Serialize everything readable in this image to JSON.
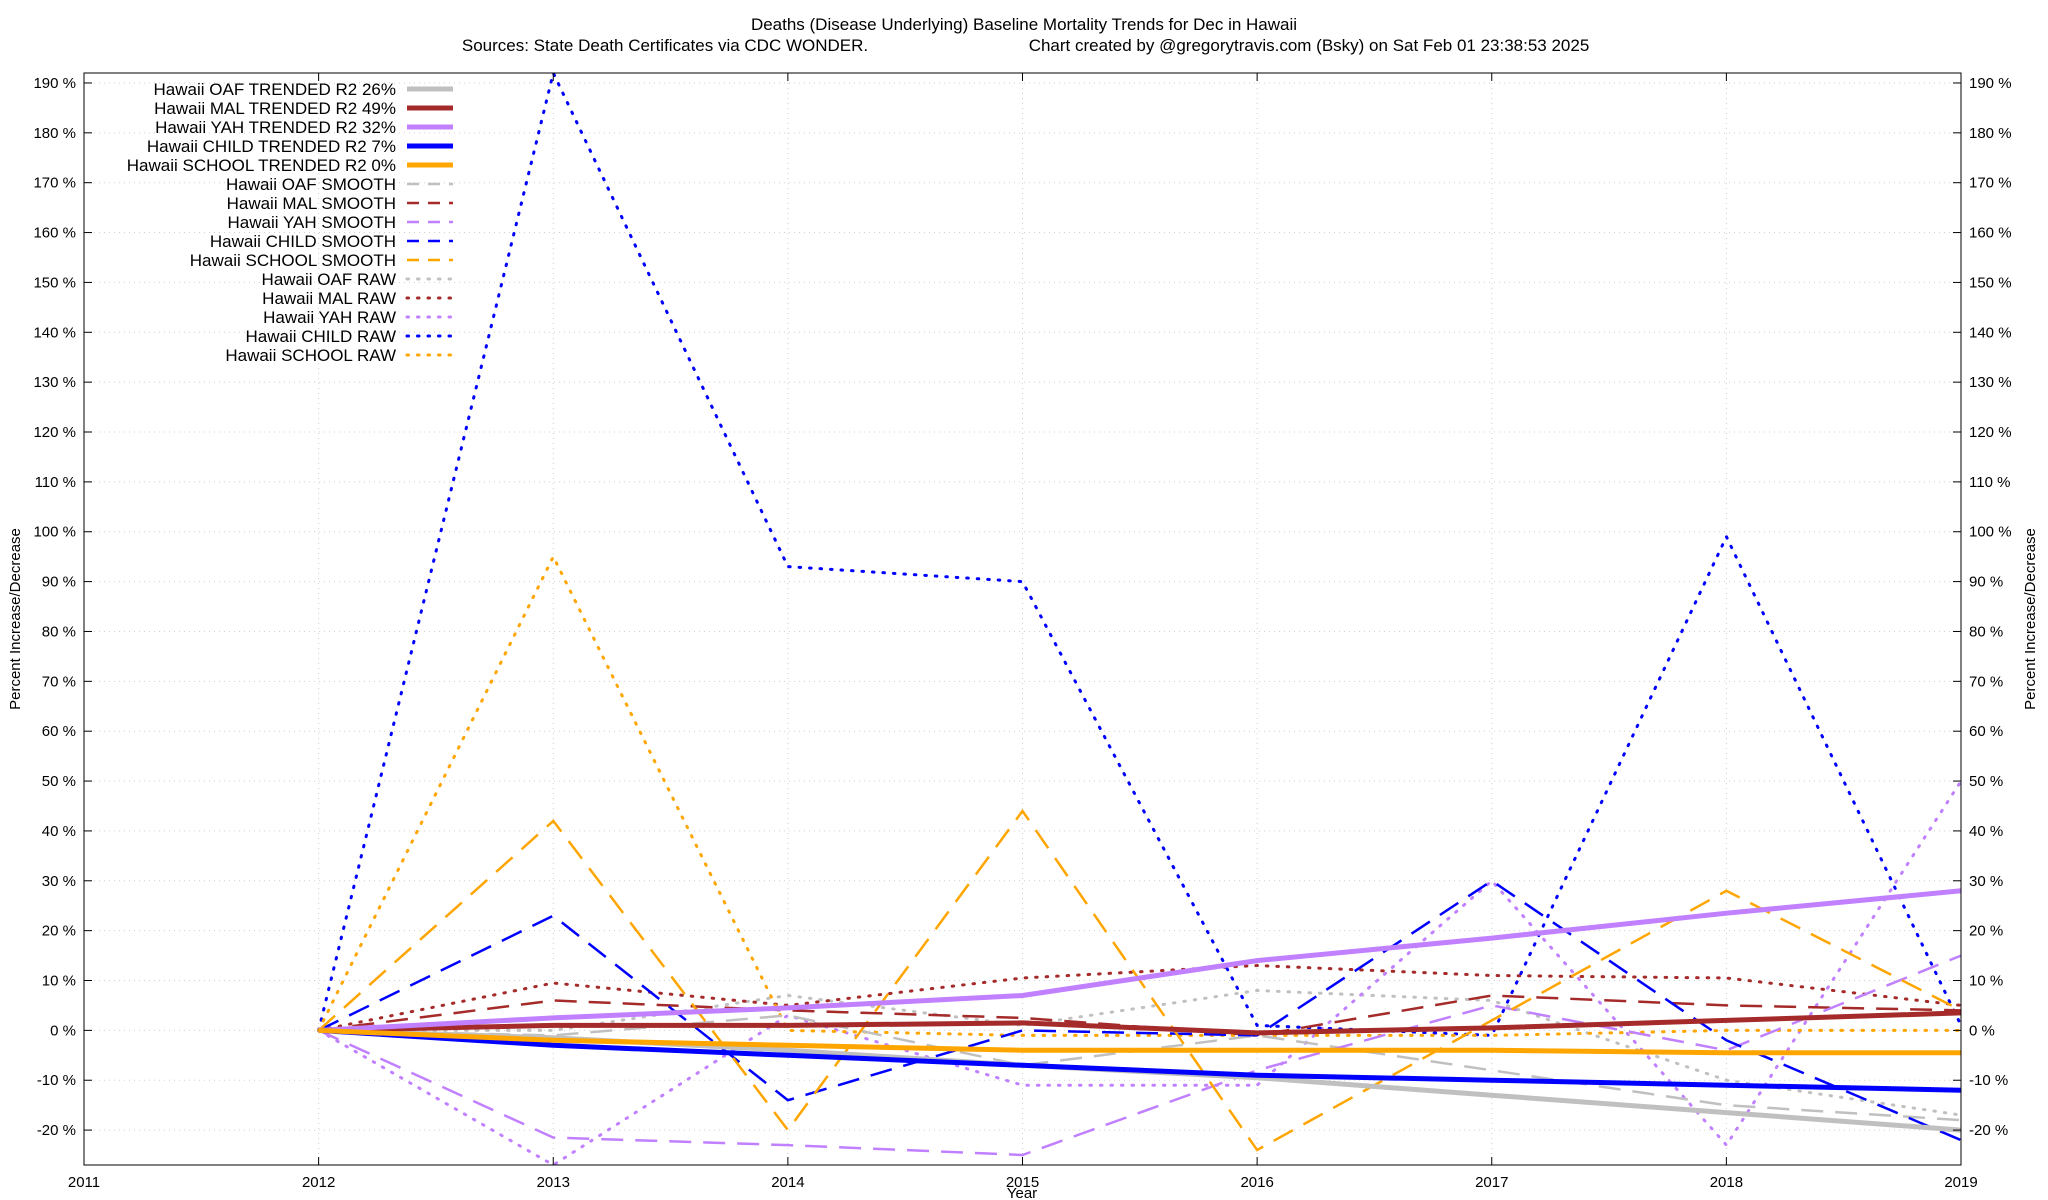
{
  "chart_data": {
    "type": "line",
    "title": "Deaths (Disease Underlying)  Baseline Mortality Trends for Dec in Hawaii",
    "subtitle_left": "Sources: State Death Certificates via CDC WONDER.",
    "subtitle_right": "Chart created by @gregorytravis.com (Bsky) on Sat Feb 01 23:38:53 2025",
    "xlabel": "Year",
    "ylabel": "Percent Increase/Decrease",
    "ylabel_right": "Percent Increase/Decrease",
    "xlim": [
      2011,
      2019
    ],
    "ylim": [
      -27,
      192
    ],
    "x_ticks": [
      2011,
      2012,
      2013,
      2014,
      2015,
      2016,
      2017,
      2018,
      2019
    ],
    "y_ticks": [
      -20,
      -10,
      0,
      10,
      20,
      30,
      40,
      50,
      60,
      70,
      80,
      90,
      100,
      110,
      120,
      130,
      140,
      150,
      160,
      170,
      180,
      190
    ],
    "y_tick_suffix": " %",
    "grid": true,
    "legend_position": "top-left",
    "x": [
      2012,
      2013,
      2014,
      2015,
      2016,
      2017,
      2018,
      2019
    ],
    "series": [
      {
        "name": "Hawaii OAF TRENDED R2  26%",
        "style": "solid",
        "color": "#c0c0c0",
        "values": [
          0,
          -1.5,
          -4,
          -7,
          -9.5,
          -13,
          -16.5,
          -20
        ]
      },
      {
        "name": "Hawaii MAL TRENDED R2  49%",
        "style": "solid",
        "color": "#a52a2a",
        "values": [
          0,
          1,
          1,
          1.5,
          -0.5,
          0.5,
          2,
          3.5
        ]
      },
      {
        "name": "Hawaii YAH TRENDED R2  32%",
        "style": "solid",
        "color": "#c080ff",
        "values": [
          0,
          2.5,
          4.5,
          7,
          14,
          18.5,
          23.5,
          28
        ]
      },
      {
        "name": "Hawaii CHILD TRENDED R2   7%",
        "style": "solid",
        "color": "#0000ff",
        "values": [
          0,
          -3,
          -5,
          -7,
          -9,
          -10,
          -11,
          -12
        ]
      },
      {
        "name": "Hawaii SCHOOL TRENDED R2   0%",
        "style": "solid",
        "color": "#ffa500",
        "values": [
          0,
          -2,
          -3,
          -4,
          -4,
          -4,
          -4.5,
          -4.5
        ]
      },
      {
        "name": "Hawaii OAF SMOOTH",
        "style": "dashed",
        "color": "#c0c0c0",
        "values": [
          0,
          -1,
          3,
          -7,
          -1,
          -8,
          -15,
          -18
        ]
      },
      {
        "name": "Hawaii MAL SMOOTH",
        "style": "dashed",
        "color": "#a52a2a",
        "values": [
          0,
          6,
          4,
          2.5,
          -1,
          7,
          5,
          4
        ]
      },
      {
        "name": "Hawaii YAH SMOOTH",
        "style": "dashed",
        "color": "#c080ff",
        "values": [
          0,
          -21.5,
          -23,
          -25,
          -8,
          5,
          -4,
          15
        ]
      },
      {
        "name": "Hawaii CHILD SMOOTH",
        "style": "dashed",
        "color": "#0000ff",
        "values": [
          0,
          23,
          -14,
          0,
          -1,
          30,
          -2,
          -22
        ]
      },
      {
        "name": "Hawaii SCHOOL SMOOTH",
        "style": "dashed",
        "color": "#ffa500",
        "values": [
          0,
          42,
          -20,
          44,
          -24,
          2,
          28,
          4
        ]
      },
      {
        "name": "Hawaii OAF RAW",
        "style": "dotted",
        "color": "#c0c0c0",
        "values": [
          0,
          0,
          7,
          1,
          8,
          6,
          -10,
          -17
        ]
      },
      {
        "name": "Hawaii MAL RAW",
        "style": "dotted",
        "color": "#a52a2a",
        "values": [
          0,
          9.5,
          5,
          10.5,
          13,
          11,
          10.5,
          5
        ]
      },
      {
        "name": "Hawaii YAH RAW",
        "style": "dotted",
        "color": "#c080ff",
        "values": [
          0,
          -27,
          3,
          -11,
          -11,
          30,
          -23,
          50
        ]
      },
      {
        "name": "Hawaii CHILD RAW",
        "style": "dotted",
        "color": "#0000ff",
        "values": [
          0,
          192,
          93,
          90,
          1,
          -1,
          99,
          1
        ]
      },
      {
        "name": "Hawaii SCHOOL RAW",
        "style": "dotted",
        "color": "#ffa500",
        "values": [
          0,
          95,
          0,
          -1,
          -1,
          -1,
          0,
          0
        ]
      }
    ]
  }
}
